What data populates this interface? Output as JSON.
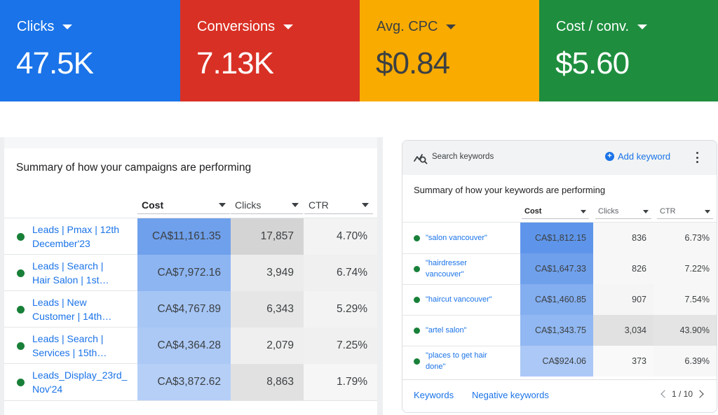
{
  "metrics": [
    {
      "label": "Clicks",
      "value": "47.5K",
      "color": "#1a73e8"
    },
    {
      "label": "Conversions",
      "value": "7.13K",
      "color": "#d93025"
    },
    {
      "label": "Avg. CPC",
      "value": "$0.84",
      "color": "#f9ab00"
    },
    {
      "label": "Cost / conv.",
      "value": "$5.60",
      "color": "#1e8e3e"
    }
  ],
  "campaigns": {
    "title": "Summary of how your campaigns are performing",
    "columns": [
      "Cost",
      "Clicks",
      "CTR"
    ],
    "rows": [
      {
        "name": "Leads | Pmax | 12th December'23",
        "cost": "CA$11,161.35",
        "clicks": "17,857",
        "ctr": "4.70%"
      },
      {
        "name": "Leads | Search | Hair Salon | 1st…",
        "cost": "CA$7,972.16",
        "clicks": "3,949",
        "ctr": "6.74%"
      },
      {
        "name": "Leads | New Customer | 14th…",
        "cost": "CA$4,767.89",
        "clicks": "6,343",
        "ctr": "5.29%"
      },
      {
        "name": "Leads | Search | Services | 15th…",
        "cost": "CA$4,364.28",
        "clicks": "2,079",
        "ctr": "7.25%"
      },
      {
        "name": "Leads_Display_23rd_ Nov'24",
        "cost": "CA$3,872.62",
        "clicks": "8,863",
        "ctr": "1.79%"
      }
    ]
  },
  "keywords": {
    "header_title": "Search keywords",
    "add_label": "Add keyword",
    "title": "Summary of how your keywords are performing",
    "columns": [
      "Cost",
      "Clicks",
      "CTR"
    ],
    "rows": [
      {
        "name": "\"salon vancouver\"",
        "cost": "CA$1,812.15",
        "clicks": "836",
        "ctr": "6.73%"
      },
      {
        "name": "\"hairdresser vancouver\"",
        "cost": "CA$1,647.33",
        "clicks": "826",
        "ctr": "7.22%"
      },
      {
        "name": "\"haircut vancouver\"",
        "cost": "CA$1,460.85",
        "clicks": "907",
        "ctr": "7.54%"
      },
      {
        "name": "\"artel salon\"",
        "cost": "CA$1,343.75",
        "clicks": "3,034",
        "ctr": "43.90%"
      },
      {
        "name": "\"places to get hair done\"",
        "cost": "CA$924.06",
        "clicks": "373",
        "ctr": "6.39%"
      }
    ],
    "footer": {
      "tab_keywords": "Keywords",
      "tab_negative": "Negative keywords",
      "pager": "1 / 10"
    }
  },
  "colors": {
    "cost_scale": [
      "#6fa0ec",
      "#8db5f2",
      "#a5c5f5",
      "#acc9f6",
      "#b5cff7"
    ],
    "clicks_scale": [
      "#d4d4d4",
      "#ececec",
      "#e6e6e6",
      "#efefef",
      "#e1e1e1"
    ],
    "ctr_scale": [
      "#f3f3f3",
      "#f0f0f0",
      "#f3f3f3",
      "#f0f0f0",
      "#f6f6f6"
    ],
    "kw_cost_scale": [
      "#5e95ea",
      "#6fa0ec",
      "#83aef0",
      "#91b8f2",
      "#abc8f6"
    ],
    "kw_clicks_scale": [
      "#f7f7f7",
      "#f7f7f7",
      "#f5f5f5",
      "#e1e1e1",
      "#f9f9f9"
    ],
    "kw_ctr_scale": [
      "#f7f7f7",
      "#f7f7f7",
      "#f7f7f7",
      "#e4e4e4",
      "#f7f7f7"
    ]
  }
}
